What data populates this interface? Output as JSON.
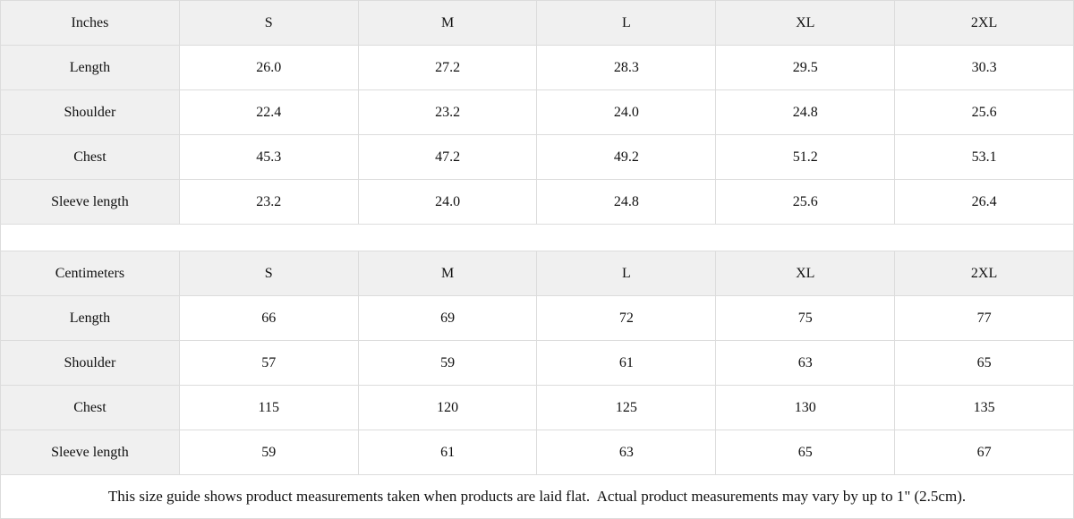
{
  "colors": {
    "header_bg": "#f0f0f0",
    "cell_bg": "#ffffff",
    "border": "#dcdcdc",
    "text": "#111111"
  },
  "tables": [
    {
      "unit_label": "Inches",
      "columns": [
        "S",
        "M",
        "L",
        "XL",
        "2XL"
      ],
      "rows": [
        {
          "label": "Length",
          "values": [
            "26.0",
            "27.2",
            "28.3",
            "29.5",
            "30.3"
          ]
        },
        {
          "label": "Shoulder",
          "values": [
            "22.4",
            "23.2",
            "24.0",
            "24.8",
            "25.6"
          ]
        },
        {
          "label": "Chest",
          "values": [
            "45.3",
            "47.2",
            "49.2",
            "51.2",
            "53.1"
          ]
        },
        {
          "label": "Sleeve length",
          "values": [
            "23.2",
            "24.0",
            "24.8",
            "25.6",
            "26.4"
          ]
        }
      ]
    },
    {
      "unit_label": "Centimeters",
      "columns": [
        "S",
        "M",
        "L",
        "XL",
        "2XL"
      ],
      "rows": [
        {
          "label": "Length",
          "values": [
            "66",
            "69",
            "72",
            "75",
            "77"
          ]
        },
        {
          "label": "Shoulder",
          "values": [
            "57",
            "59",
            "61",
            "63",
            "65"
          ]
        },
        {
          "label": "Chest",
          "values": [
            "115",
            "120",
            "125",
            "130",
            "135"
          ]
        },
        {
          "label": "Sleeve length",
          "values": [
            "59",
            "61",
            "63",
            "65",
            "67"
          ]
        }
      ]
    }
  ],
  "footer": {
    "note": "This size guide shows product measurements taken when products are laid flat.  Actual product measurements may vary by up to 1\" (2.5cm)."
  }
}
